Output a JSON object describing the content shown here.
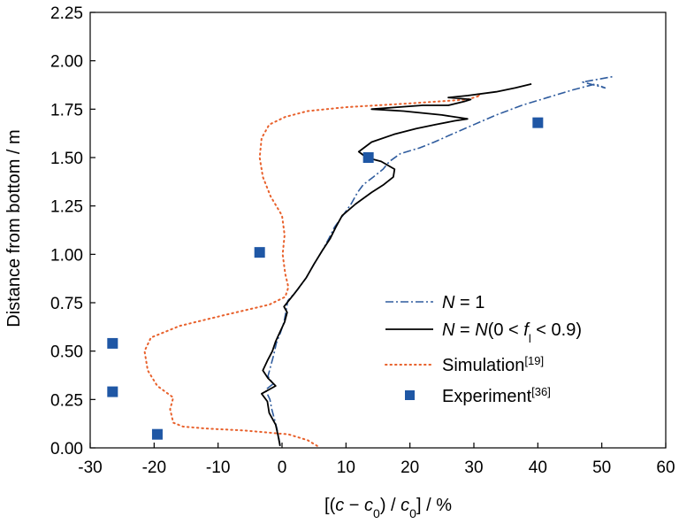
{
  "chart_data": {
    "type": "line",
    "xlabel": "[(c − c0) / c0] / %",
    "ylabel": "Distance from bottom / m",
    "xlim": [
      -30,
      60
    ],
    "ylim": [
      0,
      2.25
    ],
    "xticks": [
      "-30",
      "-20",
      "-10",
      "0",
      "10",
      "20",
      "30",
      "40",
      "50",
      "60"
    ],
    "yticks": [
      "0.00",
      "0.25",
      "0.50",
      "0.75",
      "1.00",
      "1.25",
      "1.50",
      "1.75",
      "2.00",
      "2.25"
    ],
    "grid": false,
    "legend_position": "bottom-right",
    "series": [
      {
        "name": "N = 1",
        "style": "dash-dot",
        "color": "#2f5c9e",
        "points": [
          [
            -0.3,
            0.01
          ],
          [
            -0.5,
            0.05
          ],
          [
            -0.8,
            0.1
          ],
          [
            -1.2,
            0.15
          ],
          [
            -1.6,
            0.2
          ],
          [
            -1.9,
            0.25
          ],
          [
            -2.6,
            0.3
          ],
          [
            -1.4,
            0.33
          ],
          [
            -2.2,
            0.37
          ],
          [
            -1.8,
            0.42
          ],
          [
            -1.3,
            0.48
          ],
          [
            -0.9,
            0.54
          ],
          [
            -0.2,
            0.6
          ],
          [
            0.3,
            0.65
          ],
          [
            0.6,
            0.7
          ],
          [
            0.9,
            0.76
          ],
          [
            2.5,
            0.82
          ],
          [
            3.8,
            0.88
          ],
          [
            5.0,
            0.95
          ],
          [
            6.3,
            1.02
          ],
          [
            7.3,
            1.08
          ],
          [
            8.2,
            1.14
          ],
          [
            9.5,
            1.2
          ],
          [
            10.8,
            1.26
          ],
          [
            11.8,
            1.32
          ],
          [
            12.7,
            1.36
          ],
          [
            14.3,
            1.4
          ],
          [
            15.8,
            1.44
          ],
          [
            16.8,
            1.48
          ],
          [
            18.5,
            1.52
          ],
          [
            21.5,
            1.55
          ],
          [
            23.8,
            1.58
          ],
          [
            26.5,
            1.62
          ],
          [
            30.0,
            1.67
          ],
          [
            33.5,
            1.72
          ],
          [
            37.5,
            1.77
          ],
          [
            41.5,
            1.81
          ],
          [
            45.5,
            1.85
          ],
          [
            49.0,
            1.88
          ],
          [
            50.5,
            1.86
          ],
          [
            47.0,
            1.89
          ],
          [
            52.0,
            1.92
          ]
        ]
      },
      {
        "name": "N = N(0 < fl < 0.9)",
        "style": "solid",
        "color": "#000000",
        "points": [
          [
            -0.3,
            0.01
          ],
          [
            -0.6,
            0.06
          ],
          [
            -1.0,
            0.12
          ],
          [
            -2.0,
            0.18
          ],
          [
            -2.3,
            0.24
          ],
          [
            -3.2,
            0.28
          ],
          [
            -1.0,
            0.32
          ],
          [
            -2.2,
            0.36
          ],
          [
            -3.0,
            0.4
          ],
          [
            -2.3,
            0.45
          ],
          [
            -1.5,
            0.5
          ],
          [
            -1.0,
            0.55
          ],
          [
            -0.3,
            0.6
          ],
          [
            0.4,
            0.65
          ],
          [
            0.8,
            0.7
          ],
          [
            0.3,
            0.73
          ],
          [
            2.0,
            0.8
          ],
          [
            3.8,
            0.88
          ],
          [
            5.0,
            0.95
          ],
          [
            6.3,
            1.02
          ],
          [
            7.5,
            1.08
          ],
          [
            8.4,
            1.14
          ],
          [
            9.4,
            1.2
          ],
          [
            11.5,
            1.26
          ],
          [
            14.0,
            1.32
          ],
          [
            15.9,
            1.36
          ],
          [
            17.4,
            1.4
          ],
          [
            17.6,
            1.44
          ],
          [
            15.5,
            1.48
          ],
          [
            13.2,
            1.5
          ],
          [
            12.0,
            1.53
          ],
          [
            14.0,
            1.58
          ],
          [
            17.5,
            1.62
          ],
          [
            21.0,
            1.65
          ],
          [
            24.0,
            1.67
          ],
          [
            27.0,
            1.69
          ],
          [
            29.0,
            1.7
          ],
          [
            25.0,
            1.72
          ],
          [
            19.0,
            1.74
          ],
          [
            14.0,
            1.75
          ],
          [
            18.0,
            1.76
          ],
          [
            22.0,
            1.77
          ],
          [
            26.0,
            1.77
          ],
          [
            28.5,
            1.79
          ],
          [
            29.5,
            1.8
          ],
          [
            26.0,
            1.81
          ],
          [
            29.0,
            1.82
          ],
          [
            33.5,
            1.84
          ],
          [
            36.5,
            1.86
          ],
          [
            39.0,
            1.88
          ]
        ]
      },
      {
        "name": "Simulation[19]",
        "style": "dotted",
        "color": "#e8612c",
        "points": [
          [
            5.5,
            0.01
          ],
          [
            4.0,
            0.04
          ],
          [
            1.0,
            0.07
          ],
          [
            -6.0,
            0.09
          ],
          [
            -12.0,
            0.1
          ],
          [
            -15.5,
            0.11
          ],
          [
            -17.0,
            0.13
          ],
          [
            -17.5,
            0.2
          ],
          [
            -17.0,
            0.26
          ],
          [
            -19.5,
            0.32
          ],
          [
            -21.0,
            0.4
          ],
          [
            -21.5,
            0.5
          ],
          [
            -20.5,
            0.57
          ],
          [
            -16.0,
            0.63
          ],
          [
            -8.5,
            0.69
          ],
          [
            -2.0,
            0.74
          ],
          [
            0.5,
            0.78
          ],
          [
            1.0,
            0.83
          ],
          [
            0.5,
            0.9
          ],
          [
            0.1,
            1.0
          ],
          [
            0.4,
            1.1
          ],
          [
            0.0,
            1.2
          ],
          [
            -1.8,
            1.3
          ],
          [
            -3.0,
            1.4
          ],
          [
            -3.5,
            1.5
          ],
          [
            -3.2,
            1.6
          ],
          [
            -2.0,
            1.67
          ],
          [
            0.5,
            1.71
          ],
          [
            4.0,
            1.74
          ],
          [
            10.0,
            1.76
          ],
          [
            20.0,
            1.78
          ],
          [
            29.0,
            1.8
          ],
          [
            31.0,
            1.82
          ],
          [
            30.5,
            1.83
          ]
        ]
      },
      {
        "name": "Experiment[36]",
        "style": "marker-square",
        "color": "#1f57a5",
        "points": [
          [
            -19.5,
            0.07
          ],
          [
            -26.5,
            0.29
          ],
          [
            -26.5,
            0.54
          ],
          [
            -3.5,
            1.01
          ],
          [
            13.5,
            1.5
          ],
          [
            40.0,
            1.68
          ]
        ]
      }
    ]
  },
  "legend": {
    "items": [
      {
        "prefix": "N",
        "mid": " = 1",
        "italic_var": "",
        "sub": "",
        "suffix": ""
      },
      {
        "prefix": "N",
        "mid": " = ",
        "italic_var": "N",
        "open": "(0 < ",
        "italic_f": "f",
        "sub": "l",
        "suffix": " < 0.9)"
      },
      {
        "label": "Simulation",
        "sup": "[19]"
      },
      {
        "label": "Experiment",
        "sup": "[36]"
      }
    ]
  },
  "xaxis_title": {
    "open": "[(",
    "c1": "c",
    "minus": " − ",
    "c2": "c",
    "sub1": "0",
    "mid": ") / ",
    "c3": "c",
    "sub2": "0",
    "close": "] / %"
  }
}
